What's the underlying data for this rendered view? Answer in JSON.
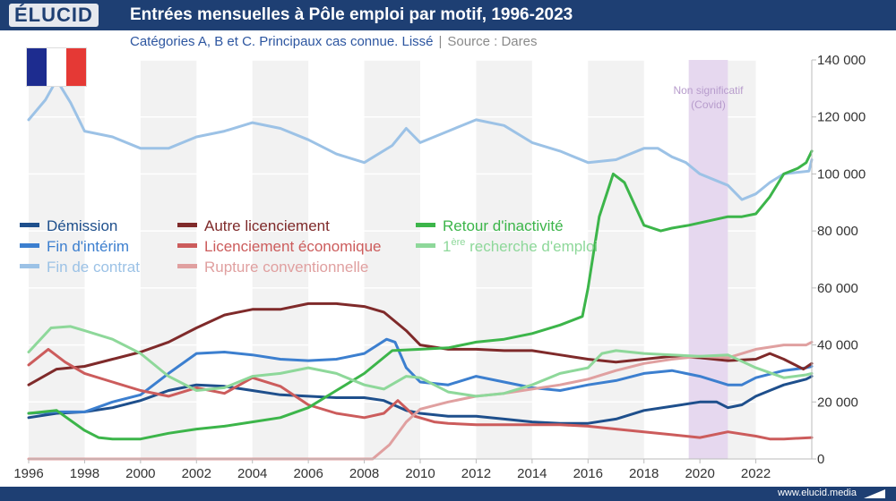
{
  "header": {
    "logo": "ÉLUCID",
    "title": "Entrées mensuelles à Pôle emploi par motif, 1996-2023"
  },
  "subtitle": {
    "text": "Catégories A, B et C. Principaux cas connue. Lissé",
    "separator": "|",
    "source": "Source : Dares"
  },
  "footer": {
    "url": "www.elucid.media"
  },
  "flag": {
    "colors": [
      "#1d2c8f",
      "#ffffff",
      "#e53935"
    ]
  },
  "chart_data": {
    "type": "line",
    "title": "Entrées mensuelles à Pôle emploi par motif, 1996-2023",
    "xlabel": "",
    "ylabel": "",
    "xlim": [
      1996,
      2024
    ],
    "ylim": [
      0,
      140000
    ],
    "x_ticks": [
      1996,
      1998,
      2000,
      2002,
      2004,
      2006,
      2008,
      2010,
      2012,
      2014,
      2016,
      2018,
      2020,
      2022
    ],
    "y_ticks": [
      0,
      20000,
      40000,
      60000,
      80000,
      100000,
      120000,
      140000
    ],
    "y_tick_labels": [
      "0",
      "20 000",
      "40 000",
      "60 000",
      "80 000",
      "100 000",
      "120 000",
      "140 000"
    ],
    "annotation": {
      "label": "Non significatif",
      "sublabel": "(Covid)",
      "x_range": [
        2019.6,
        2021.0
      ]
    },
    "legend_position": "middle-left",
    "series": [
      {
        "name": "Démission",
        "color": "#1e4f8c",
        "x": [
          1996,
          1997,
          1998,
          1999,
          2000,
          2001,
          2002,
          2003,
          2004,
          2005,
          2006,
          2007,
          2008,
          2008.7,
          2009.5,
          2010,
          2011,
          2012,
          2013,
          2014,
          2015,
          2016,
          2017,
          2018,
          2019,
          2020,
          2020.6,
          2021,
          2021.5,
          2022,
          2022.5,
          2023,
          2023.8,
          2024
        ],
        "values": [
          14500,
          16000,
          16500,
          18000,
          20500,
          24000,
          26000,
          25500,
          24000,
          22500,
          22000,
          21500,
          21500,
          20500,
          17000,
          16000,
          15000,
          15000,
          14000,
          13000,
          12500,
          12500,
          14000,
          17000,
          18500,
          20000,
          20000,
          18000,
          19000,
          22000,
          24000,
          26000,
          28000,
          29000
        ]
      },
      {
        "name": "Fin d'intérim",
        "color": "#3c7fcf",
        "x": [
          1996,
          1997,
          1998,
          1999,
          2000,
          2001,
          2002,
          2003,
          2004,
          2005,
          2006,
          2007,
          2008,
          2008.8,
          2009.1,
          2009.5,
          2010,
          2011,
          2012,
          2013,
          2014,
          2015,
          2016,
          2017,
          2018,
          2019,
          2020,
          2021,
          2021.5,
          2022,
          2023,
          2023.8,
          2024
        ],
        "values": [
          16000,
          16500,
          16500,
          20000,
          22500,
          30000,
          37000,
          37500,
          36500,
          35000,
          34500,
          35000,
          37000,
          42000,
          41000,
          32000,
          27000,
          26000,
          29000,
          27000,
          25000,
          24000,
          26000,
          27500,
          30000,
          31000,
          29000,
          26000,
          26000,
          28500,
          31000,
          32000,
          32500
        ]
      },
      {
        "name": "Fin de contrat",
        "color": "#9cc2e6",
        "x": [
          1996,
          1996.6,
          1997,
          1997.5,
          1998,
          1999,
          2000,
          2001,
          2002,
          2003,
          2004,
          2005,
          2006,
          2007,
          2008,
          2009,
          2009.5,
          2010,
          2011,
          2012,
          2013,
          2014,
          2015,
          2016,
          2017,
          2018,
          2018.5,
          2019,
          2019.5,
          2020,
          2020.5,
          2021,
          2021.5,
          2022,
          2022.5,
          2023,
          2023.9,
          2024
        ],
        "values": [
          119000,
          126000,
          133000,
          125000,
          115000,
          113000,
          109000,
          109000,
          113000,
          115000,
          118000,
          116000,
          112000,
          107000,
          104000,
          110000,
          116000,
          111000,
          115000,
          119000,
          117000,
          111000,
          108000,
          104000,
          105000,
          109000,
          109000,
          106000,
          104000,
          100000,
          98000,
          96000,
          91000,
          93000,
          97000,
          100000,
          101000,
          105000
        ]
      },
      {
        "name": "Autre licenciement",
        "color": "#7f2a2a",
        "x": [
          1996,
          1997,
          1998,
          1999,
          2000,
          2001,
          2002,
          2003,
          2004,
          2005,
          2006,
          2007,
          2008,
          2008.7,
          2009.5,
          2010,
          2011,
          2012,
          2013,
          2014,
          2015,
          2016,
          2017,
          2018,
          2019,
          2020,
          2021,
          2022,
          2022.5,
          2023,
          2023.7,
          2024
        ],
        "values": [
          26000,
          31500,
          32500,
          35000,
          37500,
          41000,
          46000,
          50500,
          52500,
          52500,
          54500,
          54500,
          53500,
          51500,
          45000,
          40000,
          38500,
          38500,
          38000,
          38000,
          36500,
          35000,
          34000,
          35000,
          36000,
          35500,
          34500,
          35000,
          37000,
          35000,
          31500,
          33500
        ]
      },
      {
        "name": "Licenciement économique",
        "color": "#cc5c5c",
        "x": [
          1996,
          1996.7,
          1997.3,
          1998,
          1999,
          2000,
          2001,
          2002,
          2003,
          2004,
          2005,
          2006,
          2007,
          2008,
          2008.7,
          2009.2,
          2009.8,
          2010.5,
          2011,
          2012,
          2013,
          2014,
          2015,
          2016,
          2017,
          2018,
          2019,
          2020,
          2021,
          2022,
          2022.5,
          2023,
          2024
        ],
        "values": [
          33000,
          38500,
          34000,
          30000,
          27000,
          24000,
          22000,
          25000,
          23000,
          28500,
          25500,
          19000,
          16000,
          14500,
          16000,
          20500,
          15000,
          13000,
          12500,
          12000,
          12000,
          12000,
          12000,
          11500,
          10500,
          9500,
          8500,
          7500,
          9500,
          8000,
          7000,
          7000,
          7500
        ]
      },
      {
        "name": "Rupture conventionnelle",
        "color": "#e0a0a0",
        "x": [
          1996,
          2008.3,
          2008.9,
          2009.5,
          2010,
          2011,
          2012,
          2013,
          2014,
          2015,
          2016,
          2017,
          2018,
          2019,
          2020,
          2021,
          2022,
          2023,
          2023.8,
          2024
        ],
        "values": [
          0,
          0,
          5000,
          13000,
          17500,
          20000,
          22000,
          23000,
          24500,
          26000,
          28000,
          31000,
          33500,
          35000,
          36000,
          35500,
          38500,
          40000,
          40000,
          41000
        ]
      },
      {
        "name": "Retour d'inactivité",
        "color": "#3cb54a",
        "x": [
          1996,
          1997,
          1998,
          1998.5,
          1999,
          2000,
          2001,
          2002,
          2003,
          2004,
          2005,
          2006,
          2007,
          2008,
          2009,
          2010,
          2011,
          2012,
          2013,
          2014,
          2015,
          2015.8,
          2016,
          2016.4,
          2016.9,
          2017.3,
          2018,
          2018.6,
          2019,
          2019.6,
          2021,
          2021.5,
          2022,
          2022.5,
          2023,
          2023.5,
          2023.8,
          2024
        ],
        "values": [
          16000,
          17000,
          10000,
          7500,
          7000,
          7000,
          9000,
          10500,
          11500,
          13000,
          14500,
          18000,
          24000,
          30000,
          38000,
          38500,
          39000,
          41000,
          42000,
          44000,
          47000,
          50000,
          60000,
          85000,
          100000,
          97000,
          82000,
          80000,
          81000,
          82000,
          85000,
          85000,
          86000,
          92000,
          100000,
          102000,
          104000,
          108000
        ]
      },
      {
        "name": "1ère recherche d'emploi",
        "color": "#8ed89a",
        "x": [
          1996,
          1996.8,
          1997.5,
          1998,
          1999,
          2000,
          2001,
          2002,
          2003,
          2004,
          2005,
          2006,
          2007,
          2008,
          2008.7,
          2009.5,
          2010,
          2011,
          2012,
          2013,
          2014,
          2015,
          2016,
          2016.5,
          2017,
          2018,
          2019,
          2020,
          2021,
          2022,
          2023,
          2023.8,
          2024
        ],
        "values": [
          37500,
          46000,
          46500,
          45000,
          42000,
          37000,
          29000,
          24000,
          25000,
          29000,
          30000,
          32000,
          30000,
          26000,
          24500,
          29000,
          28500,
          23500,
          22000,
          23000,
          26000,
          30000,
          32000,
          37000,
          38000,
          37000,
          36500,
          36000,
          36500,
          32000,
          28500,
          29500,
          30000
        ]
      }
    ]
  }
}
